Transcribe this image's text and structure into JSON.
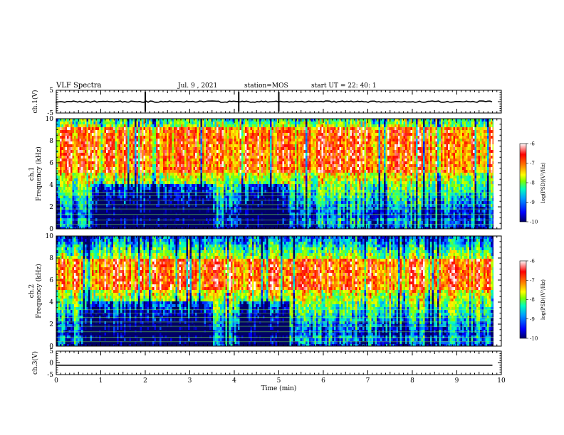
{
  "header": {
    "title": "VLF Spectra",
    "date": "Jul. 9 , 2021",
    "station": "station=MOS",
    "start": "start UT =  22: 40: 1"
  },
  "chart_data": [
    {
      "type": "line",
      "panel": "ch1-waveform",
      "ylabel": "ch.1(V)",
      "ylim": [
        -5,
        5
      ],
      "yticks": [
        "5",
        "-5"
      ],
      "xlim": [
        0,
        10
      ],
      "series": [
        {
          "x": [
            0,
            9.8
          ],
          "y": [
            0,
            0
          ]
        }
      ]
    },
    {
      "type": "heatmap",
      "panel": "ch1-spectrogram",
      "ylabel": "ch.1\nFrequency (kHz)",
      "ylim": [
        0,
        10
      ],
      "yticks": [
        "0",
        "2",
        "4",
        "6",
        "8",
        "10"
      ],
      "xlim": [
        0,
        10
      ],
      "intense_band_khz": [
        5,
        9.2
      ],
      "colorbar": {
        "label": "log(PSD)(V²/Hz)",
        "min": -10,
        "max": -6,
        "ticks": [
          "-6",
          "-7",
          "-8",
          "-9",
          "-10"
        ]
      }
    },
    {
      "type": "heatmap",
      "panel": "ch2-spectrogram",
      "ylabel": "ch.2\nFrequency (kHz)",
      "ylim": [
        0,
        10
      ],
      "yticks": [
        "0",
        "2",
        "4",
        "6",
        "8",
        "10"
      ],
      "xlim": [
        0,
        10
      ],
      "intense_band_khz": [
        5,
        8
      ],
      "colorbar": {
        "label": "log(PSD)(V²/Hz)",
        "min": -10,
        "max": -6,
        "ticks": [
          "-6",
          "-7",
          "-8",
          "-9",
          "-10"
        ]
      }
    },
    {
      "type": "line",
      "panel": "ch3-waveform",
      "ylabel": "ch.3(V)",
      "ylim": [
        -5,
        5
      ],
      "yticks": [
        "5",
        "0",
        "-5"
      ],
      "xlim": [
        0,
        10
      ],
      "xlabel": "Time (min)",
      "xticks": [
        "0",
        "1",
        "2",
        "3",
        "4",
        "5",
        "6",
        "7",
        "8",
        "9",
        "10"
      ],
      "series": [
        {
          "x": [
            0,
            9.8
          ],
          "y": [
            -1,
            -1
          ]
        }
      ]
    }
  ],
  "colors": {
    "scale": [
      "#000066",
      "#0000ff",
      "#00a0ff",
      "#00ffc0",
      "#80ff00",
      "#ffff00",
      "#ff8000",
      "#ff0000",
      "#ffffff"
    ]
  }
}
